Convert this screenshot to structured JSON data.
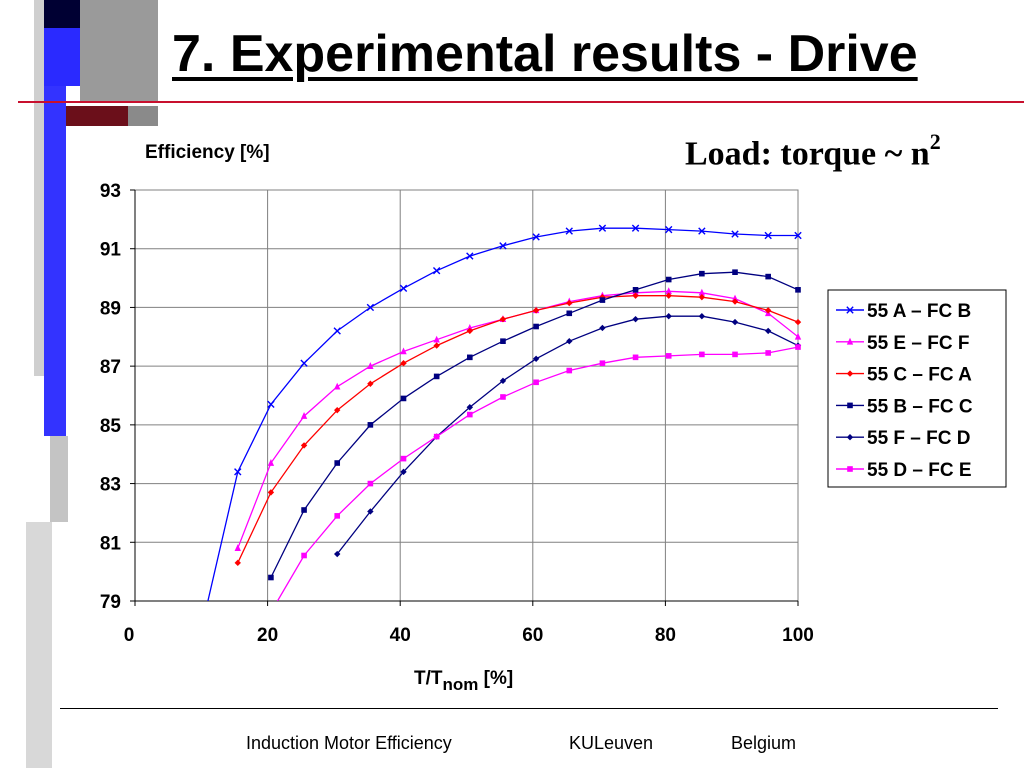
{
  "slide": {
    "title": "7. Experimental results - Drive",
    "load_label": "Load: torque ~ n",
    "load_exponent": "2"
  },
  "footer": {
    "left": "Induction Motor Efficiency",
    "center": "KULeuven",
    "right": "Belgium"
  },
  "theme": {
    "template_blue": "#3333ff",
    "template_grey": "#bbbbbb",
    "template_dark": "#000033",
    "title_rule": "#c8102e"
  },
  "chart_data": {
    "type": "line",
    "ylabel": "Efficiency [%]",
    "xlabel_main": "T/T",
    "xlabel_sub": "nom",
    "xlabel_unit": " [%]",
    "xlim": [
      0,
      100
    ],
    "ylim": [
      79,
      93
    ],
    "xticks": [
      0,
      20,
      40,
      60,
      80,
      100
    ],
    "yticks": [
      79,
      81,
      83,
      85,
      87,
      89,
      91,
      93
    ],
    "grid": true,
    "legend_position": "right",
    "series": [
      {
        "name": "55 A – FC B",
        "color": "#0000ff",
        "marker": "x",
        "x": [
          11,
          15.5,
          20.5,
          25.5,
          30.5,
          35.5,
          40.5,
          45.5,
          50.5,
          55.5,
          60.5,
          65.5,
          70.5,
          75.5,
          80.5,
          85.5,
          90.5,
          95.5,
          100
        ],
        "y": [
          79,
          83.4,
          85.7,
          87.1,
          88.2,
          89.0,
          89.65,
          90.25,
          90.75,
          91.1,
          91.4,
          91.6,
          91.7,
          91.7,
          91.65,
          91.6,
          91.5,
          91.45,
          91.45
        ],
        "markers_from": 1
      },
      {
        "name": "55 E – FC F",
        "color": "#ff00ff",
        "marker": "triangle",
        "x": [
          15.5,
          20.5,
          25.5,
          30.5,
          35.5,
          40.5,
          45.5,
          50.5,
          55.5,
          60.5,
          65.5,
          70.5,
          75.5,
          80.5,
          85.5,
          90.5,
          95.5,
          100
        ],
        "y": [
          80.8,
          83.7,
          85.3,
          86.3,
          87.0,
          87.5,
          87.9,
          88.3,
          88.6,
          88.9,
          89.2,
          89.4,
          89.5,
          89.55,
          89.5,
          89.3,
          88.8,
          88.0
        ],
        "markers_from": 0
      },
      {
        "name": "55 C – FC A",
        "color": "#ff0000",
        "marker": "diamond",
        "x": [
          15.5,
          20.5,
          25.5,
          30.5,
          35.5,
          40.5,
          45.5,
          50.5,
          55.5,
          60.5,
          65.5,
          70.5,
          75.5,
          80.5,
          85.5,
          90.5,
          95.5,
          100
        ],
        "y": [
          80.3,
          82.7,
          84.3,
          85.5,
          86.4,
          87.1,
          87.7,
          88.2,
          88.6,
          88.9,
          89.15,
          89.35,
          89.4,
          89.4,
          89.35,
          89.2,
          88.9,
          88.5
        ],
        "markers_from": 0
      },
      {
        "name": "55 B – FC C",
        "color": "#000080",
        "marker": "square",
        "x": [
          20.5,
          25.5,
          30.5,
          35.5,
          40.5,
          45.5,
          50.5,
          55.5,
          60.5,
          65.5,
          70.5,
          75.5,
          80.5,
          85.5,
          90.5,
          95.5,
          100
        ],
        "y": [
          79.8,
          82.1,
          83.7,
          85.0,
          85.9,
          86.65,
          87.3,
          87.85,
          88.35,
          88.8,
          89.25,
          89.6,
          89.95,
          90.15,
          90.2,
          90.05,
          89.6
        ],
        "markers_from": 0
      },
      {
        "name": "55 F – FC D",
        "color": "#000080",
        "marker": "diamond",
        "x": [
          30.5,
          35.5,
          40.5,
          45.5,
          50.5,
          55.5,
          60.5,
          65.5,
          70.5,
          75.5,
          80.5,
          85.5,
          90.5,
          95.5,
          100
        ],
        "y": [
          80.6,
          82.05,
          83.4,
          84.6,
          85.6,
          86.5,
          87.25,
          87.85,
          88.3,
          88.6,
          88.7,
          88.7,
          88.5,
          88.2,
          87.7
        ],
        "markers_from": 0
      },
      {
        "name": "55 D – FC E",
        "color": "#ff00ff",
        "marker": "square",
        "x": [
          21.5,
          25.5,
          30.5,
          35.5,
          40.5,
          45.5,
          50.5,
          55.5,
          60.5,
          65.5,
          70.5,
          75.5,
          80.5,
          85.5,
          90.5,
          95.5,
          100
        ],
        "y": [
          79,
          80.55,
          81.9,
          83.0,
          83.85,
          84.6,
          85.35,
          85.95,
          86.45,
          86.85,
          87.1,
          87.3,
          87.35,
          87.4,
          87.4,
          87.45,
          87.65
        ],
        "markers_from": 1
      }
    ]
  }
}
